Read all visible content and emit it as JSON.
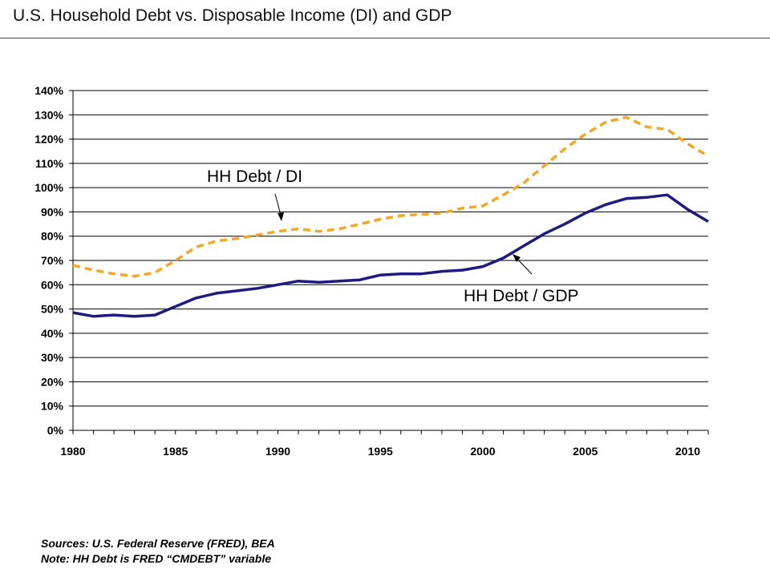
{
  "title": "U.S. Household Debt vs. Disposable Income (DI) and GDP",
  "chart_data": {
    "type": "line",
    "title": "U.S. Household Debt vs. Disposable Income (DI) and GDP",
    "x": [
      1980,
      1981,
      1982,
      1983,
      1984,
      1985,
      1986,
      1987,
      1988,
      1989,
      1990,
      1991,
      1992,
      1993,
      1994,
      1995,
      1996,
      1997,
      1998,
      1999,
      2000,
      2001,
      2002,
      2003,
      2004,
      2005,
      2006,
      2007,
      2008,
      2009,
      2010,
      2011
    ],
    "xlim": [
      1980,
      2011
    ],
    "ylim": [
      0,
      140
    ],
    "y_unit": "%",
    "grid": true,
    "legend": "none",
    "x_ticks": [
      "1980",
      "1985",
      "1990",
      "1995",
      "2000",
      "2005",
      "2010"
    ],
    "y_ticks": [
      "0%",
      "10%",
      "20%",
      "30%",
      "40%",
      "50%",
      "60%",
      "70%",
      "80%",
      "90%",
      "100%",
      "110%",
      "120%",
      "130%",
      "140%"
    ],
    "series": [
      {
        "name": "HH Debt / DI",
        "color": "#F5A623",
        "style": "dashed",
        "values": [
          68,
          66,
          64.5,
          63.5,
          65,
          70,
          75.5,
          78,
          79,
          80.5,
          82,
          83,
          82,
          83,
          85,
          87,
          88.5,
          89,
          89.5,
          91.5,
          92.5,
          97,
          102,
          109,
          116,
          122,
          127,
          129,
          125,
          124,
          118,
          113
        ]
      },
      {
        "name": "HH Debt / GDP",
        "color": "#1C1C80",
        "style": "solid",
        "values": [
          48.5,
          47,
          47.5,
          47,
          47.5,
          51,
          54.5,
          56.5,
          57.5,
          58.5,
          60,
          61.5,
          61,
          61.5,
          62,
          64,
          64.5,
          64.5,
          65.5,
          66,
          67.5,
          71,
          76,
          81,
          85,
          89.5,
          93,
          95.5,
          96,
          97,
          91,
          86
        ]
      }
    ],
    "annotations": [
      {
        "text": "HH Debt / DI",
        "series": "HH Debt / DI"
      },
      {
        "text": "HH Debt / GDP",
        "series": "HH Debt / GDP"
      }
    ]
  },
  "footer": {
    "line1": "Sources:  U.S. Federal Reserve (FRED), BEA",
    "line2": "Note: HH Debt is FRED “CMDEBT” variable"
  }
}
